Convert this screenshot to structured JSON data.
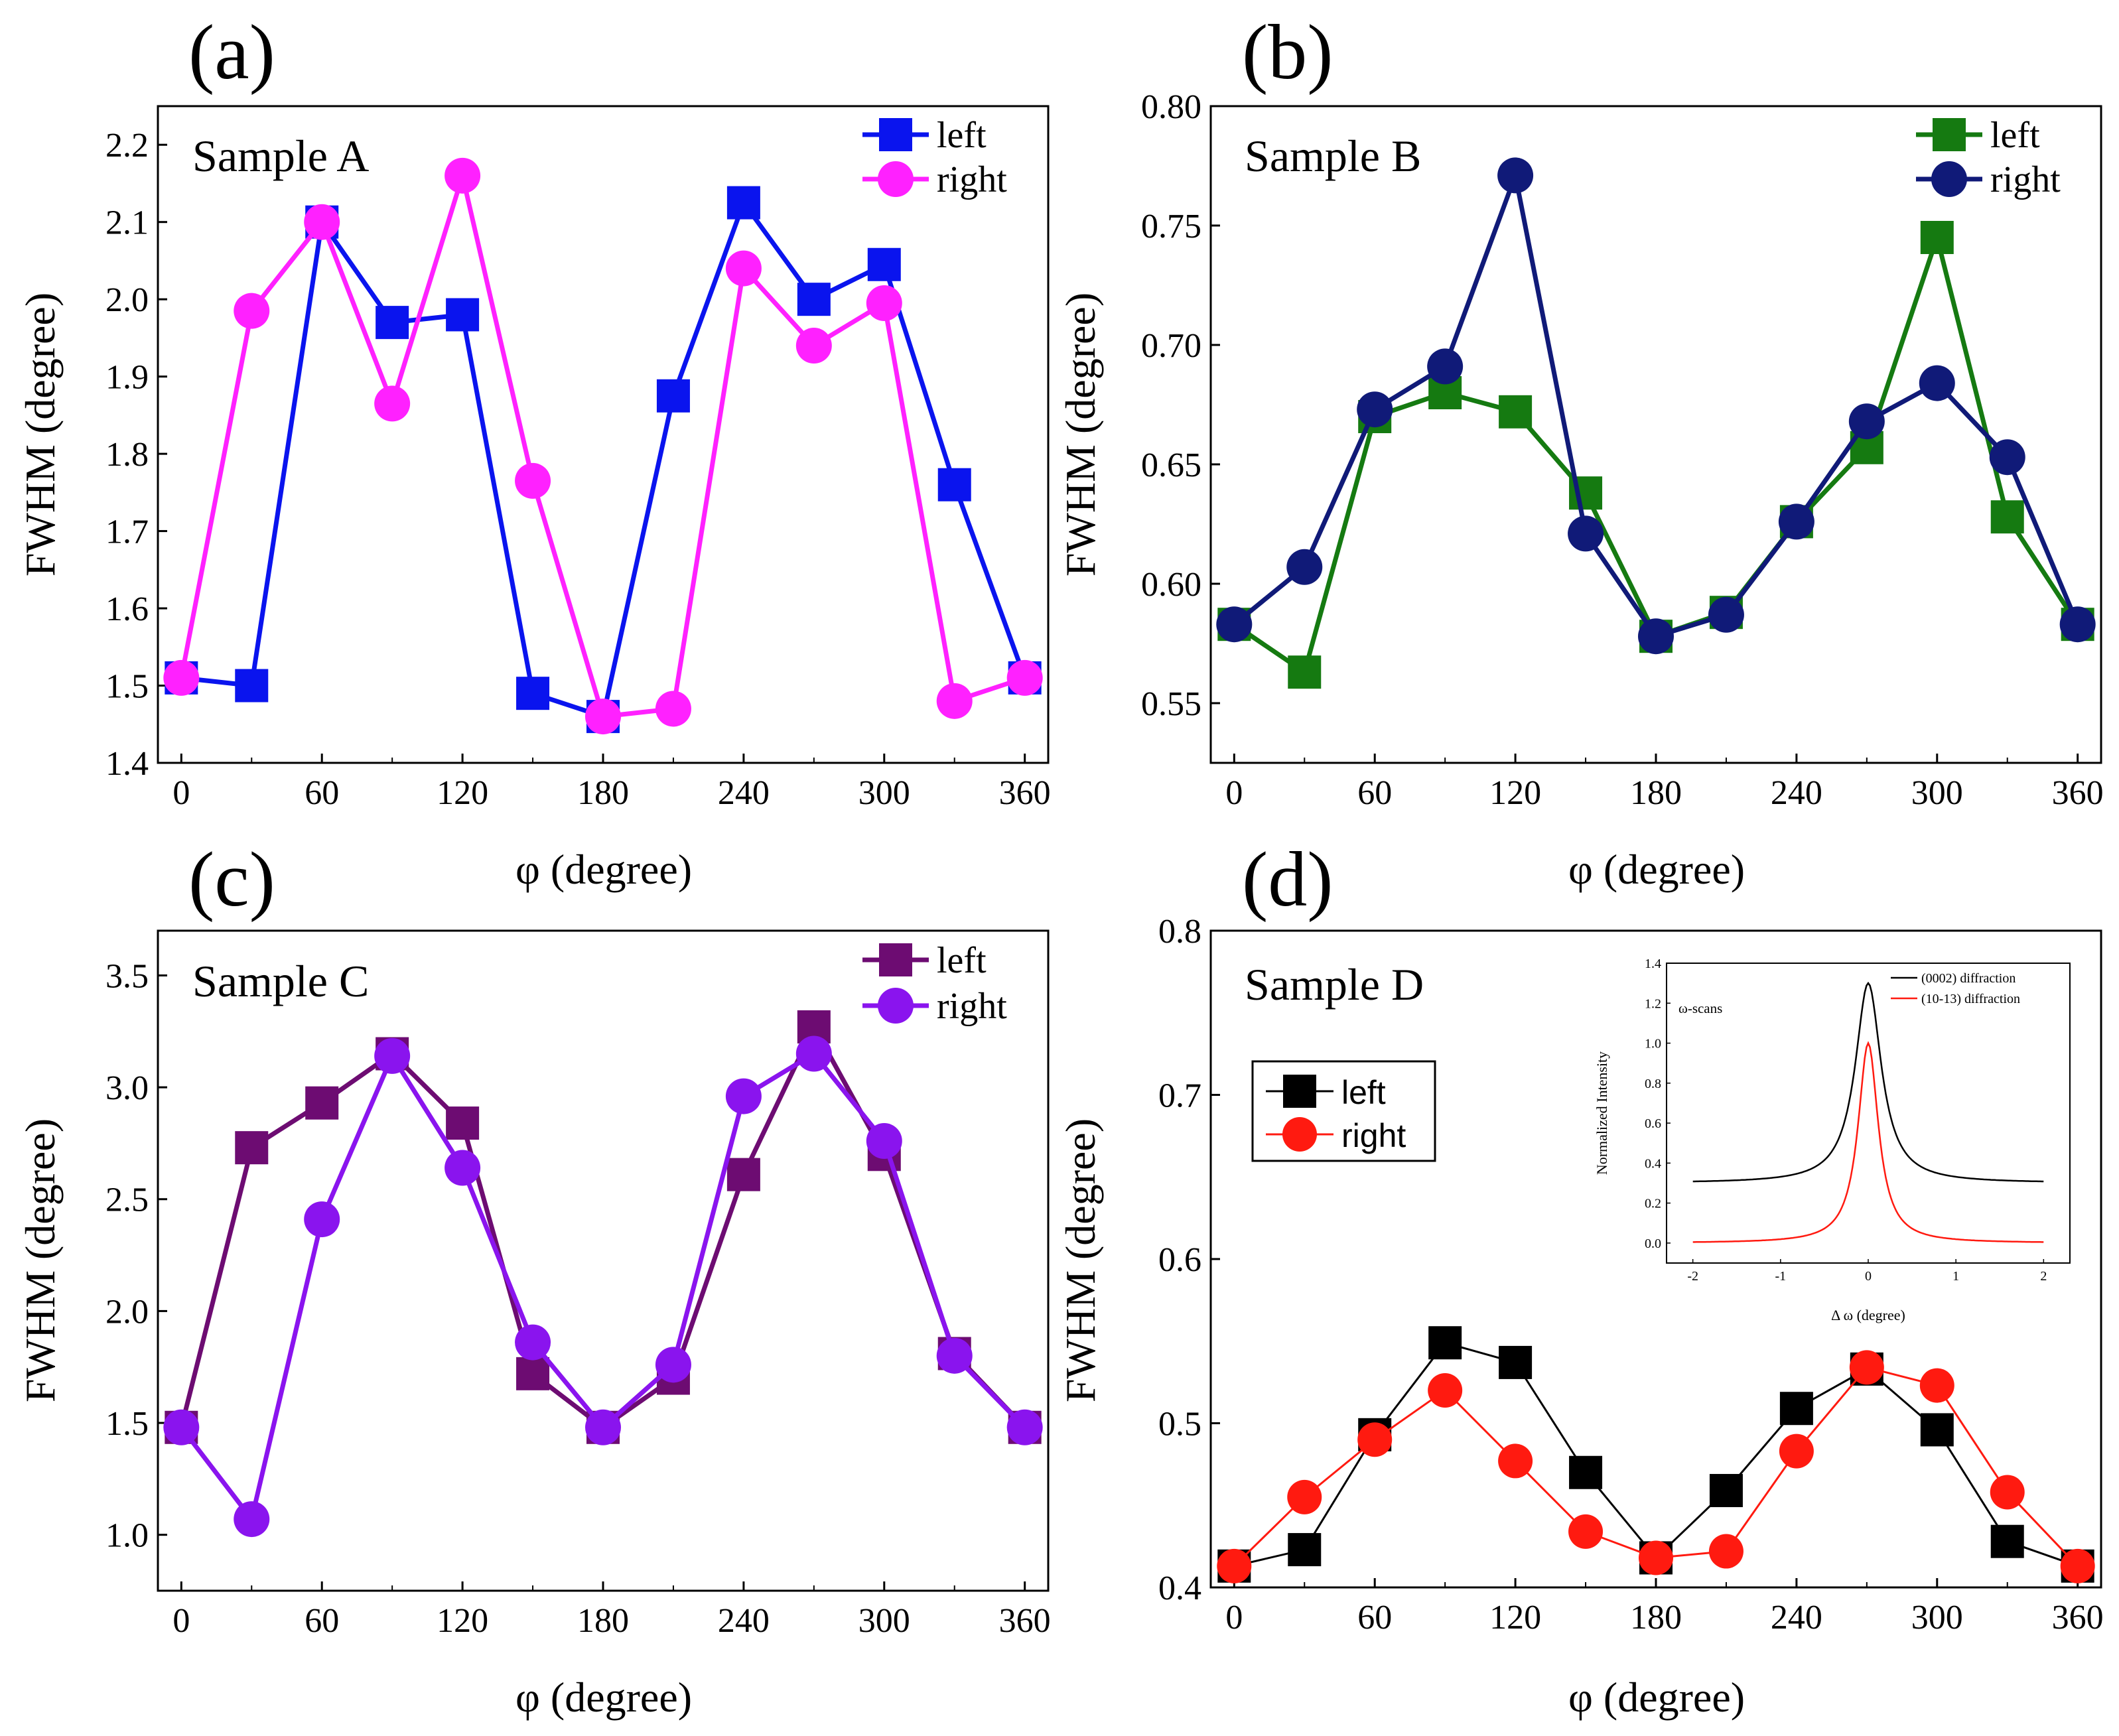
{
  "figure": {
    "description_free": true
  },
  "chart_data": [
    {
      "panel": "(a)",
      "type": "line",
      "annotation": "Sample A",
      "xlabel": "φ (degree)",
      "ylabel": "FWHM (degree)",
      "xlim": [
        -10,
        370
      ],
      "ylim": [
        1.4,
        2.25
      ],
      "xticks": [
        0,
        60,
        120,
        180,
        240,
        300,
        360
      ],
      "xtick_labels": [
        "0",
        "60",
        "120",
        "180",
        "240",
        "300",
        "360"
      ],
      "yticks": [
        1.4,
        1.5,
        1.6,
        1.7,
        1.8,
        1.9,
        2.0,
        2.1,
        2.2
      ],
      "ytick_labels": [
        "1.4",
        "1.5",
        "1.6",
        "1.7",
        "1.8",
        "1.9",
        "2.0",
        "2.1",
        "2.2"
      ],
      "legend_position": "top-right",
      "x": [
        0,
        30,
        60,
        90,
        120,
        150,
        180,
        210,
        240,
        270,
        300,
        330,
        360
      ],
      "series": [
        {
          "name": "left",
          "color": "#0a14ee",
          "marker": "square",
          "values": [
            1.51,
            1.5,
            2.1,
            1.97,
            1.98,
            1.49,
            1.46,
            1.875,
            2.125,
            2.0,
            2.045,
            1.76,
            1.51
          ]
        },
        {
          "name": "right",
          "color": "#ff21ff",
          "marker": "circle",
          "values": [
            1.51,
            1.985,
            2.1,
            1.865,
            2.16,
            1.765,
            1.46,
            1.47,
            2.04,
            1.94,
            1.995,
            1.48,
            1.51
          ]
        }
      ]
    },
    {
      "panel": "(b)",
      "type": "line",
      "annotation": "Sample B",
      "xlabel": "φ (degree)",
      "ylabel": "FWHM (degree)",
      "xlim": [
        -10,
        370
      ],
      "ylim": [
        0.525,
        0.8
      ],
      "xticks": [
        0,
        60,
        120,
        180,
        240,
        300,
        360
      ],
      "xtick_labels": [
        "0",
        "60",
        "120",
        "180",
        "240",
        "300",
        "360"
      ],
      "yticks": [
        0.55,
        0.6,
        0.65,
        0.7,
        0.75,
        0.8
      ],
      "ytick_labels": [
        "0.55",
        "0.60",
        "0.65",
        "0.70",
        "0.75",
        "0.80"
      ],
      "legend_position": "top-right",
      "x": [
        0,
        30,
        60,
        90,
        120,
        150,
        180,
        210,
        240,
        270,
        300,
        330,
        360
      ],
      "series": [
        {
          "name": "left",
          "color": "#157a11",
          "marker": "square",
          "values": [
            0.583,
            0.563,
            0.67,
            0.68,
            0.672,
            0.638,
            0.578,
            0.588,
            0.626,
            0.657,
            0.745,
            0.628,
            0.583
          ]
        },
        {
          "name": "right",
          "color": "#101a78",
          "marker": "circle",
          "values": [
            0.583,
            0.607,
            0.673,
            0.691,
            0.771,
            0.621,
            0.578,
            0.587,
            0.626,
            0.668,
            0.684,
            0.653,
            0.583
          ]
        }
      ]
    },
    {
      "panel": "(c)",
      "type": "line",
      "annotation": "Sample C",
      "xlabel": "φ (degree)",
      "ylabel": "FWHM (degree)",
      "xlim": [
        -10,
        370
      ],
      "ylim": [
        0.75,
        3.7
      ],
      "xticks": [
        0,
        60,
        120,
        180,
        240,
        300,
        360
      ],
      "xtick_labels": [
        "0",
        "60",
        "120",
        "180",
        "240",
        "300",
        "360"
      ],
      "yticks": [
        1.0,
        1.5,
        2.0,
        2.5,
        3.0,
        3.5
      ],
      "ytick_labels": [
        "1.0",
        "1.5",
        "2.0",
        "2.5",
        "3.0",
        "3.5"
      ],
      "legend_position": "top-right",
      "x": [
        0,
        30,
        60,
        90,
        120,
        150,
        180,
        210,
        240,
        270,
        300,
        330,
        360
      ],
      "series": [
        {
          "name": "left",
          "color": "#6d0c72",
          "marker": "square",
          "values": [
            1.48,
            2.73,
            2.93,
            3.15,
            2.84,
            1.72,
            1.48,
            1.7,
            2.61,
            3.27,
            2.7,
            1.81,
            1.48
          ]
        },
        {
          "name": "right",
          "color": "#8a14ee",
          "marker": "circle",
          "values": [
            1.48,
            1.07,
            2.41,
            3.14,
            2.64,
            1.86,
            1.48,
            1.76,
            2.96,
            3.15,
            2.76,
            1.8,
            1.48
          ]
        }
      ]
    },
    {
      "panel": "(d)",
      "type": "line",
      "annotation": "Sample D",
      "xlabel": "φ (degree)",
      "ylabel": "FWHM (degree)",
      "xlim": [
        -10,
        370
      ],
      "ylim": [
        0.4,
        0.8
      ],
      "xticks": [
        0,
        60,
        120,
        180,
        240,
        300,
        360
      ],
      "xtick_labels": [
        "0",
        "60",
        "120",
        "180",
        "240",
        "300",
        "360"
      ],
      "yticks": [
        0.4,
        0.5,
        0.6,
        0.7,
        0.8
      ],
      "ytick_labels": [
        "0.4",
        "0.5",
        "0.6",
        "0.7",
        "0.8"
      ],
      "legend_position": "left",
      "x": [
        0,
        30,
        60,
        90,
        120,
        150,
        180,
        210,
        240,
        270,
        300,
        330,
        360
      ],
      "series": [
        {
          "name": "left",
          "color": "#000000",
          "marker": "square",
          "values": [
            0.413,
            0.423,
            0.493,
            0.549,
            0.537,
            0.47,
            0.418,
            0.459,
            0.509,
            0.533,
            0.496,
            0.428,
            0.413
          ]
        },
        {
          "name": "right",
          "color": "#ff1a10",
          "marker": "circle",
          "values": [
            0.413,
            0.455,
            0.49,
            0.52,
            0.477,
            0.434,
            0.418,
            0.422,
            0.483,
            0.534,
            0.523,
            0.458,
            0.413
          ]
        }
      ],
      "inset": {
        "type": "line",
        "annotation": "ω-scans",
        "xlabel": "Δ ω (degree)",
        "ylabel": "Normalized Intensity",
        "xlim": [
          -2.3,
          2.3
        ],
        "ylim": [
          -0.1,
          1.4
        ],
        "xticks": [
          -2,
          -1,
          0,
          1,
          2
        ],
        "xtick_labels": [
          "-2",
          "-1",
          "0",
          "1",
          "2"
        ],
        "yticks": [
          0.0,
          0.2,
          0.4,
          0.6,
          0.8,
          1.0,
          1.2,
          1.4
        ],
        "ytick_labels": [
          "0.0",
          "0.2",
          "0.4",
          "0.6",
          "0.8",
          "1.0",
          "1.2",
          "1.4"
        ],
        "legend_position": "top-right",
        "series": [
          {
            "name": "(0002) diffraction",
            "color": "#000000",
            "baseline": 0.3,
            "peak": 1.3,
            "halfwidth": 0.18
          },
          {
            "name": "(10-13) diffraction",
            "color": "#ff1a10",
            "baseline": 0.0,
            "peak": 1.0,
            "halfwidth": 0.14
          }
        ]
      }
    }
  ]
}
